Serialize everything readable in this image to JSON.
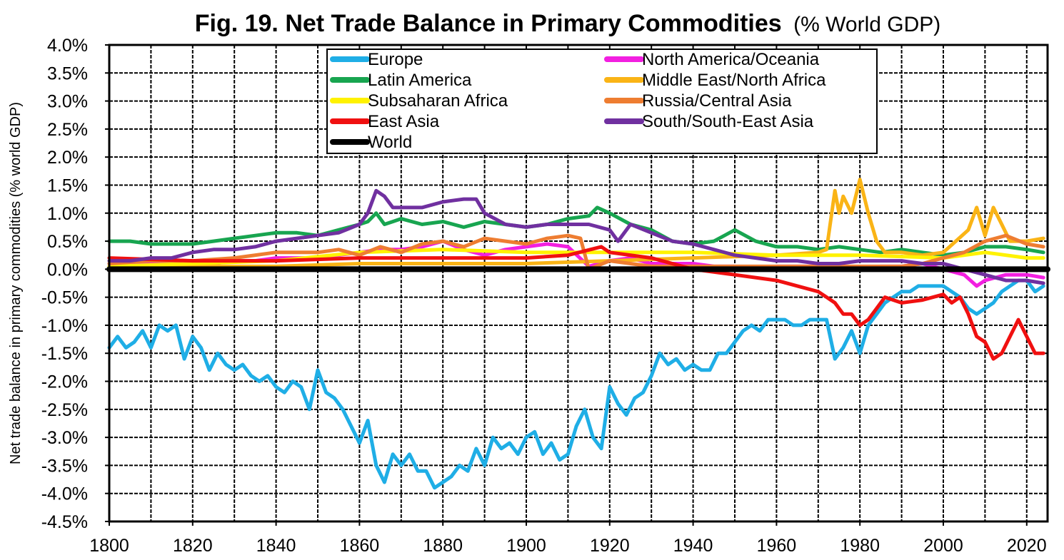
{
  "chart_data": {
    "type": "line",
    "title": "Fig. 19. Net Trade Balance in Primary Commodities",
    "subtitle": "(% World GDP)",
    "xlabel": "",
    "ylabel": "Net trade balance in primary commodities (% world GDP)",
    "xlim": [
      1800,
      2025
    ],
    "ylim": [
      -4.5,
      4.0
    ],
    "x_ticks": [
      1800,
      1820,
      1840,
      1860,
      1880,
      1900,
      1920,
      1940,
      1960,
      1980,
      2000,
      2020
    ],
    "x_tick_labels": [
      "1800",
      "1820",
      "1840",
      "1860",
      "1880",
      "1900",
      "1920",
      "1940",
      "1960",
      "1980",
      "2000",
      "2020"
    ],
    "y_ticks": [
      4.0,
      3.5,
      3.0,
      2.5,
      2.0,
      1.5,
      1.0,
      0.5,
      0.0,
      -0.5,
      -1.0,
      -1.5,
      -2.0,
      -2.5,
      -3.0,
      -3.5,
      -4.0,
      -4.5
    ],
    "y_tick_labels": [
      "4.0%",
      "3.5%",
      "3.0%",
      "2.5%",
      "2.0%",
      "1.5%",
      "1.0%",
      "0.5%",
      "0.0%",
      "-0.5%",
      "-1.0%",
      "-1.5%",
      "-2.0%",
      "-2.5%",
      "-3.0%",
      "-3.5%",
      "-4.0%",
      "-4.5%"
    ],
    "grid": true,
    "legend_position": "top-center",
    "series": [
      {
        "name": "Europe",
        "color": "#1FAEE6",
        "x": [
          1800,
          1802,
          1804,
          1806,
          1808,
          1810,
          1812,
          1814,
          1816,
          1818,
          1820,
          1822,
          1824,
          1826,
          1828,
          1830,
          1832,
          1834,
          1836,
          1838,
          1840,
          1842,
          1844,
          1846,
          1848,
          1850,
          1852,
          1854,
          1856,
          1858,
          1860,
          1862,
          1864,
          1866,
          1868,
          1870,
          1872,
          1874,
          1876,
          1878,
          1880,
          1882,
          1884,
          1886,
          1888,
          1890,
          1892,
          1894,
          1896,
          1898,
          1900,
          1902,
          1904,
          1906,
          1908,
          1910,
          1912,
          1914,
          1916,
          1918,
          1920,
          1922,
          1924,
          1926,
          1928,
          1930,
          1932,
          1934,
          1936,
          1938,
          1940,
          1942,
          1944,
          1946,
          1948,
          1950,
          1952,
          1954,
          1956,
          1958,
          1960,
          1962,
          1964,
          1966,
          1968,
          1970,
          1972,
          1974,
          1976,
          1978,
          1980,
          1982,
          1984,
          1986,
          1988,
          1990,
          1992,
          1994,
          1996,
          1998,
          2000,
          2002,
          2004,
          2006,
          2008,
          2010,
          2012,
          2014,
          2016,
          2018,
          2020,
          2022,
          2024
        ],
        "values": [
          -1.4,
          -1.2,
          -1.4,
          -1.3,
          -1.1,
          -1.4,
          -1.0,
          -1.1,
          -1.0,
          -1.6,
          -1.2,
          -1.4,
          -1.8,
          -1.5,
          -1.7,
          -1.8,
          -1.7,
          -1.9,
          -2.0,
          -1.9,
          -2.1,
          -2.2,
          -2.0,
          -2.1,
          -2.5,
          -1.8,
          -2.2,
          -2.3,
          -2.5,
          -2.8,
          -3.1,
          -2.7,
          -3.5,
          -3.8,
          -3.3,
          -3.5,
          -3.3,
          -3.6,
          -3.6,
          -3.9,
          -3.8,
          -3.7,
          -3.5,
          -3.6,
          -3.2,
          -3.5,
          -3.0,
          -3.2,
          -3.1,
          -3.3,
          -3.0,
          -2.9,
          -3.3,
          -3.1,
          -3.4,
          -3.3,
          -2.8,
          -2.5,
          -3.0,
          -3.2,
          -2.1,
          -2.4,
          -2.6,
          -2.3,
          -2.2,
          -1.9,
          -1.5,
          -1.7,
          -1.6,
          -1.8,
          -1.7,
          -1.8,
          -1.8,
          -1.5,
          -1.5,
          -1.3,
          -1.1,
          -1.0,
          -1.1,
          -0.9,
          -0.9,
          -0.9,
          -1.0,
          -1.0,
          -0.9,
          -0.9,
          -0.9,
          -1.6,
          -1.4,
          -1.1,
          -1.5,
          -1.0,
          -0.8,
          -0.6,
          -0.5,
          -0.4,
          -0.4,
          -0.3,
          -0.3,
          -0.3,
          -0.3,
          -0.4,
          -0.5,
          -0.7,
          -0.8,
          -0.7,
          -0.6,
          -0.4,
          -0.3,
          -0.2,
          -0.2,
          -0.4,
          -0.3
        ]
      },
      {
        "name": "North America/Oceania",
        "color": "#F21FE0",
        "x": [
          1800,
          1805,
          1810,
          1815,
          1820,
          1825,
          1830,
          1835,
          1840,
          1845,
          1850,
          1855,
          1860,
          1865,
          1870,
          1875,
          1880,
          1885,
          1890,
          1895,
          1900,
          1905,
          1910,
          1915,
          1920,
          1925,
          1930,
          1935,
          1940,
          1945,
          1950,
          1955,
          1960,
          1965,
          1970,
          1975,
          1980,
          1985,
          1990,
          1995,
          2000,
          2005,
          2008,
          2010,
          2015,
          2020,
          2024
        ],
        "values": [
          0.1,
          0.1,
          0.1,
          0.1,
          0.1,
          0.1,
          0.15,
          0.15,
          0.2,
          0.2,
          0.2,
          0.25,
          0.3,
          0.35,
          0.35,
          0.4,
          0.5,
          0.35,
          0.25,
          0.35,
          0.4,
          0.45,
          0.4,
          0.05,
          0.15,
          0.2,
          0.1,
          0.1,
          0.1,
          0.05,
          0.05,
          0.0,
          0.05,
          0.05,
          0.05,
          0.05,
          0.0,
          0.05,
          0.05,
          0.1,
          0.0,
          -0.1,
          -0.3,
          -0.2,
          -0.1,
          -0.1,
          -0.15
        ]
      },
      {
        "name": "Latin America",
        "color": "#18A550",
        "x": [
          1800,
          1805,
          1810,
          1815,
          1820,
          1825,
          1830,
          1835,
          1840,
          1845,
          1850,
          1855,
          1860,
          1862,
          1864,
          1866,
          1868,
          1870,
          1875,
          1880,
          1885,
          1890,
          1895,
          1900,
          1905,
          1910,
          1915,
          1917,
          1920,
          1925,
          1930,
          1935,
          1940,
          1945,
          1950,
          1955,
          1960,
          1965,
          1970,
          1975,
          1980,
          1985,
          1990,
          1995,
          2000,
          2005,
          2010,
          2015,
          2020,
          2024
        ],
        "values": [
          0.5,
          0.5,
          0.45,
          0.45,
          0.45,
          0.5,
          0.55,
          0.6,
          0.65,
          0.65,
          0.6,
          0.7,
          0.8,
          0.85,
          1.0,
          0.8,
          0.85,
          0.9,
          0.8,
          0.85,
          0.75,
          0.85,
          0.8,
          0.75,
          0.8,
          0.9,
          0.95,
          1.1,
          1.0,
          0.8,
          0.7,
          0.5,
          0.45,
          0.5,
          0.7,
          0.5,
          0.4,
          0.4,
          0.35,
          0.4,
          0.35,
          0.3,
          0.35,
          0.3,
          0.25,
          0.3,
          0.4,
          0.4,
          0.35,
          0.3
        ]
      },
      {
        "name": "Middle East/North Africa",
        "color": "#FAB416",
        "x": [
          1800,
          1820,
          1840,
          1860,
          1880,
          1900,
          1920,
          1940,
          1960,
          1970,
          1972,
          1974,
          1975,
          1976,
          1978,
          1980,
          1982,
          1984,
          1986,
          1990,
          1995,
          2000,
          2003,
          2006,
          2008,
          2010,
          2012,
          2014,
          2016,
          2020,
          2024
        ],
        "values": [
          0.05,
          0.05,
          0.05,
          0.1,
          0.1,
          0.1,
          0.15,
          0.2,
          0.25,
          0.3,
          0.35,
          1.4,
          1.0,
          1.3,
          1.0,
          1.6,
          1.0,
          0.5,
          0.3,
          0.3,
          0.25,
          0.3,
          0.5,
          0.7,
          1.1,
          0.6,
          1.1,
          0.8,
          0.5,
          0.5,
          0.55
        ]
      },
      {
        "name": "Subsaharan Africa",
        "color": "#FFF200",
        "x": [
          1800,
          1820,
          1840,
          1860,
          1880,
          1900,
          1920,
          1940,
          1960,
          1980,
          2000,
          2010,
          2020,
          2024
        ],
        "values": [
          0.05,
          0.1,
          0.15,
          0.3,
          0.35,
          0.3,
          0.3,
          0.3,
          0.25,
          0.25,
          0.2,
          0.3,
          0.2,
          0.2
        ]
      },
      {
        "name": "Russia/Central Asia",
        "color": "#EE7D31",
        "x": [
          1800,
          1810,
          1820,
          1830,
          1840,
          1850,
          1855,
          1860,
          1865,
          1870,
          1875,
          1880,
          1885,
          1890,
          1895,
          1900,
          1905,
          1910,
          1913,
          1915,
          1920,
          1925,
          1930,
          1990,
          1995,
          2000,
          2005,
          2010,
          2015,
          2020,
          2024
        ],
        "values": [
          0.1,
          0.15,
          0.15,
          0.2,
          0.3,
          0.3,
          0.35,
          0.25,
          0.4,
          0.3,
          0.45,
          0.5,
          0.4,
          0.55,
          0.5,
          0.45,
          0.55,
          0.6,
          0.55,
          0.0,
          0.15,
          0.1,
          0.05,
          0.05,
          0.1,
          0.2,
          0.3,
          0.5,
          0.6,
          0.45,
          0.4
        ]
      },
      {
        "name": "East Asia",
        "color": "#F01010",
        "x": [
          1800,
          1820,
          1840,
          1860,
          1880,
          1900,
          1910,
          1918,
          1920,
          1930,
          1940,
          1950,
          1960,
          1965,
          1970,
          1972,
          1974,
          1976,
          1978,
          1980,
          1982,
          1984,
          1986,
          1990,
          1995,
          2000,
          2002,
          2004,
          2006,
          2008,
          2010,
          2012,
          2014,
          2016,
          2018,
          2020,
          2022,
          2024
        ],
        "values": [
          0.2,
          0.15,
          0.15,
          0.2,
          0.2,
          0.2,
          0.25,
          0.4,
          0.3,
          0.2,
          0.0,
          -0.1,
          -0.2,
          -0.3,
          -0.4,
          -0.5,
          -0.6,
          -0.8,
          -0.8,
          -1.0,
          -0.9,
          -0.7,
          -0.5,
          -0.6,
          -0.55,
          -0.45,
          -0.6,
          -0.5,
          -0.8,
          -1.2,
          -1.3,
          -1.6,
          -1.5,
          -1.2,
          -0.9,
          -1.2,
          -1.5,
          -1.5
        ]
      },
      {
        "name": "South/South-East Asia",
        "color": "#7030A0",
        "x": [
          1800,
          1805,
          1810,
          1815,
          1820,
          1825,
          1830,
          1835,
          1840,
          1845,
          1850,
          1855,
          1860,
          1862,
          1864,
          1866,
          1868,
          1870,
          1875,
          1880,
          1885,
          1888,
          1890,
          1895,
          1900,
          1905,
          1910,
          1915,
          1920,
          1922,
          1925,
          1930,
          1935,
          1940,
          1945,
          1950,
          1955,
          1960,
          1965,
          1970,
          1975,
          1980,
          1985,
          1990,
          1995,
          2000,
          2005,
          2010,
          2015,
          2020,
          2024
        ],
        "values": [
          0.15,
          0.15,
          0.2,
          0.2,
          0.3,
          0.35,
          0.35,
          0.4,
          0.5,
          0.55,
          0.6,
          0.65,
          0.8,
          1.0,
          1.4,
          1.3,
          1.1,
          1.1,
          1.1,
          1.2,
          1.25,
          1.25,
          1.0,
          0.8,
          0.75,
          0.8,
          0.8,
          0.8,
          0.7,
          0.5,
          0.8,
          0.65,
          0.5,
          0.45,
          0.35,
          0.25,
          0.2,
          0.15,
          0.15,
          0.1,
          0.1,
          0.15,
          0.15,
          0.15,
          0.1,
          0.1,
          0.0,
          -0.1,
          -0.2,
          -0.2,
          -0.25
        ]
      },
      {
        "name": "World",
        "color": "#000000",
        "x": [
          1800,
          2025
        ],
        "values": [
          0.0,
          0.0
        ]
      }
    ]
  }
}
